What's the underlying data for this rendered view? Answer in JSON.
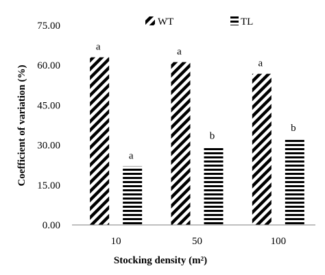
{
  "chart_data": {
    "type": "bar",
    "categories": [
      "10",
      "50",
      "100"
    ],
    "series": [
      {
        "name": "WT",
        "values": [
          63.0,
          61.2,
          56.8
        ],
        "labels": [
          "a",
          "a",
          "a"
        ],
        "pattern": "diagonal-stripes"
      },
      {
        "name": "TL",
        "values": [
          22.0,
          29.5,
          32.5
        ],
        "labels": [
          "a",
          "b",
          "b"
        ],
        "pattern": "horizontal-stripes"
      }
    ],
    "xlabel": "Stocking density (m²)",
    "ylabel": "Coefficient of variation (%)",
    "ylim": [
      0,
      75
    ],
    "yticks": [
      "0.00",
      "15.00",
      "30.00",
      "45.00",
      "60.00",
      "75.00"
    ],
    "grid": false,
    "legend": "top"
  }
}
